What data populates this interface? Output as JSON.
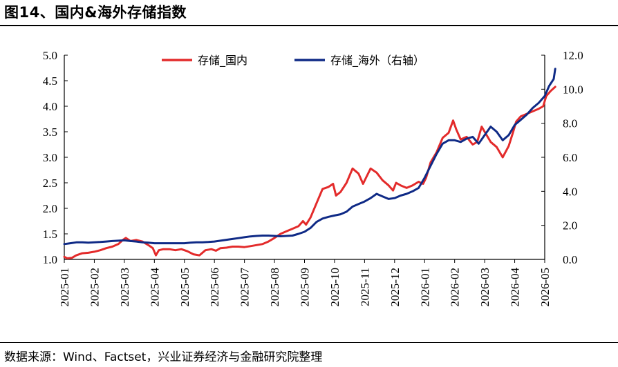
{
  "figure": {
    "title": "图14、国内&海外存储指数",
    "source": "数据来源：Wind、Factset，兴业证券经济与金融研究院整理"
  },
  "colors": {
    "domestic": "#e32b2b",
    "overseas": "#0f2a86"
  },
  "chart_data": {
    "type": "line",
    "title": "",
    "x_ticks": [
      "2025-01",
      "2025-02",
      "2025-03",
      "2025-04",
      "2025-05",
      "2025-06",
      "2025-07",
      "2025-08",
      "2025-09",
      "2025-10",
      "2025-11",
      "2025-12",
      "2026-01",
      "2026-02",
      "2026-03",
      "2026-04",
      "2026-05"
    ],
    "y_left": {
      "min": 1.0,
      "max": 5.0,
      "ticks": [
        "1.0",
        "1.5",
        "2.0",
        "2.5",
        "3.0",
        "3.5",
        "4.0",
        "4.5",
        "5.0"
      ]
    },
    "y_right": {
      "min": 0.0,
      "max": 12.0,
      "ticks": [
        "0.0",
        "2.0",
        "4.0",
        "6.0",
        "8.0",
        "10.0",
        "12.0"
      ]
    },
    "legend_position": "top",
    "series": [
      {
        "name": "存储_国内",
        "axis": "left",
        "color": "#e32b2b",
        "x": [
          0,
          0.1,
          0.25,
          0.4,
          0.6,
          0.8,
          1.0,
          1.2,
          1.4,
          1.6,
          1.8,
          1.95,
          2.05,
          2.2,
          2.4,
          2.6,
          2.8,
          2.95,
          3.05,
          3.15,
          3.3,
          3.5,
          3.7,
          3.9,
          4.1,
          4.3,
          4.5,
          4.7,
          4.9,
          5.05,
          5.2,
          5.4,
          5.6,
          5.8,
          6.0,
          6.2,
          6.4,
          6.6,
          6.8,
          7.0,
          7.2,
          7.4,
          7.6,
          7.8,
          7.95,
          8.05,
          8.2,
          8.4,
          8.6,
          8.8,
          8.95,
          9.05,
          9.2,
          9.4,
          9.6,
          9.8,
          9.95,
          10.05,
          10.2,
          10.4,
          10.6,
          10.8,
          10.95,
          11.05,
          11.2,
          11.4,
          11.6,
          11.8,
          11.95,
          12.05,
          12.2,
          12.4,
          12.6,
          12.8,
          12.95,
          13.05,
          13.2,
          13.4,
          13.6,
          13.75,
          13.9,
          14.05,
          14.2,
          14.4,
          14.6,
          14.8,
          14.95,
          15.05,
          15.2,
          15.4,
          15.6,
          15.8,
          15.95,
          16.05,
          16.2,
          16.35
        ],
        "values": [
          1.05,
          1.02,
          1.03,
          1.08,
          1.12,
          1.13,
          1.15,
          1.18,
          1.22,
          1.25,
          1.3,
          1.38,
          1.42,
          1.36,
          1.38,
          1.35,
          1.28,
          1.22,
          1.08,
          1.18,
          1.2,
          1.2,
          1.18,
          1.2,
          1.16,
          1.1,
          1.08,
          1.18,
          1.2,
          1.17,
          1.22,
          1.23,
          1.25,
          1.25,
          1.24,
          1.26,
          1.28,
          1.3,
          1.35,
          1.42,
          1.5,
          1.55,
          1.6,
          1.65,
          1.75,
          1.68,
          1.82,
          2.1,
          2.38,
          2.42,
          2.48,
          2.25,
          2.32,
          2.5,
          2.78,
          2.68,
          2.48,
          2.6,
          2.78,
          2.7,
          2.55,
          2.45,
          2.35,
          2.5,
          2.45,
          2.4,
          2.45,
          2.52,
          2.48,
          2.6,
          2.9,
          3.1,
          3.38,
          3.48,
          3.72,
          3.55,
          3.35,
          3.4,
          3.25,
          3.3,
          3.6,
          3.45,
          3.3,
          3.2,
          3.0,
          3.22,
          3.5,
          3.7,
          3.8,
          3.85,
          3.9,
          3.95,
          4.0,
          4.2,
          4.3,
          4.38
        ]
      },
      {
        "name": "存储_海外（右轴）",
        "axis": "right",
        "color": "#0f2a86",
        "x": [
          0,
          0.2,
          0.4,
          0.6,
          0.8,
          1.0,
          1.2,
          1.4,
          1.6,
          1.8,
          2.0,
          2.2,
          2.4,
          2.6,
          2.8,
          3.0,
          3.2,
          3.4,
          3.6,
          3.8,
          4.0,
          4.2,
          4.4,
          4.6,
          4.8,
          5.0,
          5.2,
          5.4,
          5.6,
          5.8,
          6.0,
          6.2,
          6.4,
          6.6,
          6.8,
          7.0,
          7.2,
          7.4,
          7.6,
          7.8,
          8.0,
          8.2,
          8.4,
          8.6,
          8.8,
          9.0,
          9.2,
          9.4,
          9.6,
          9.8,
          10.0,
          10.2,
          10.4,
          10.6,
          10.8,
          11.0,
          11.2,
          11.4,
          11.6,
          11.8,
          12.0,
          12.2,
          12.4,
          12.6,
          12.8,
          13.0,
          13.2,
          13.4,
          13.6,
          13.8,
          14.0,
          14.2,
          14.4,
          14.6,
          14.8,
          15.0,
          15.2,
          15.4,
          15.6,
          15.8,
          16.0,
          16.15,
          16.3,
          16.35
        ],
        "values": [
          0.9,
          0.95,
          1.0,
          1.0,
          0.98,
          1.0,
          1.02,
          1.05,
          1.08,
          1.1,
          1.12,
          1.08,
          1.05,
          1.0,
          0.98,
          0.95,
          0.95,
          0.95,
          0.95,
          0.95,
          0.95,
          0.98,
          1.0,
          1.0,
          1.02,
          1.05,
          1.1,
          1.15,
          1.2,
          1.25,
          1.3,
          1.35,
          1.38,
          1.4,
          1.4,
          1.38,
          1.36,
          1.38,
          1.4,
          1.5,
          1.62,
          1.85,
          2.2,
          2.4,
          2.5,
          2.58,
          2.65,
          2.8,
          3.1,
          3.25,
          3.4,
          3.6,
          3.85,
          3.7,
          3.55,
          3.6,
          3.75,
          3.85,
          4.0,
          4.2,
          4.8,
          5.5,
          6.2,
          6.8,
          7.0,
          7.0,
          6.9,
          7.1,
          7.2,
          6.8,
          7.3,
          7.8,
          7.5,
          7.0,
          7.3,
          7.9,
          8.2,
          8.5,
          8.9,
          9.2,
          9.6,
          10.2,
          10.6,
          11.2
        ]
      }
    ]
  }
}
